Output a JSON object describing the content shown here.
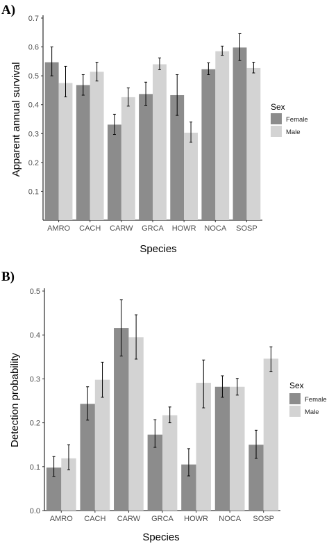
{
  "colors": {
    "female": "#8c8c8c",
    "male": "#d3d3d3",
    "axis": "#000000",
    "errorbar": "#000000"
  },
  "chart_data": [
    {
      "panel_label": "A)",
      "type": "bar",
      "xlabel": "Species",
      "ylabel": "Apparent annual survival",
      "ylim": [
        0,
        0.7
      ],
      "yticks": [
        "0.1",
        "0.2",
        "0.3",
        "0.4",
        "0.5",
        "0.6",
        "0.7"
      ],
      "categories": [
        "AMRO",
        "CACH",
        "CARW",
        "GRCA",
        "HOWR",
        "NOCA",
        "SOSP"
      ],
      "legend": {
        "title": "Sex",
        "position": "right"
      },
      "grid": false,
      "series": [
        {
          "name": "Female",
          "values": [
            0.547,
            0.468,
            0.331,
            0.437,
            0.433,
            0.523,
            0.598
          ],
          "lower": [
            0.5,
            0.433,
            0.297,
            0.398,
            0.363,
            0.504,
            0.553
          ],
          "upper": [
            0.6,
            0.504,
            0.367,
            0.478,
            0.504,
            0.545,
            0.646
          ]
        },
        {
          "name": "Male",
          "values": [
            0.475,
            0.514,
            0.426,
            0.54,
            0.303,
            0.585,
            0.527
          ],
          "lower": [
            0.427,
            0.482,
            0.395,
            0.521,
            0.27,
            0.571,
            0.51
          ],
          "upper": [
            0.533,
            0.547,
            0.458,
            0.562,
            0.34,
            0.603,
            0.547
          ]
        }
      ]
    },
    {
      "panel_label": "B)",
      "type": "bar",
      "xlabel": "Species",
      "ylabel": "Detection probability",
      "ylim": [
        0,
        0.5
      ],
      "yticks": [
        "0.0",
        "0.1",
        "0.2",
        "0.3",
        "0.4",
        "0.5"
      ],
      "categories": [
        "AMRO",
        "CACH",
        "CARW",
        "GRCA",
        "HOWR",
        "NOCA",
        "SOSP"
      ],
      "legend": {
        "title": "Sex",
        "position": "right"
      },
      "grid": false,
      "series": [
        {
          "name": "Female",
          "values": [
            0.098,
            0.243,
            0.416,
            0.173,
            0.105,
            0.282,
            0.15
          ],
          "lower": [
            0.078,
            0.206,
            0.352,
            0.144,
            0.079,
            0.258,
            0.119
          ],
          "upper": [
            0.123,
            0.282,
            0.48,
            0.207,
            0.141,
            0.307,
            0.183
          ]
        },
        {
          "name": "Male",
          "values": [
            0.119,
            0.298,
            0.395,
            0.217,
            0.291,
            0.282,
            0.346
          ],
          "lower": [
            0.093,
            0.258,
            0.345,
            0.2,
            0.234,
            0.263,
            0.317
          ],
          "upper": [
            0.15,
            0.338,
            0.446,
            0.236,
            0.343,
            0.301,
            0.373
          ]
        }
      ]
    }
  ]
}
